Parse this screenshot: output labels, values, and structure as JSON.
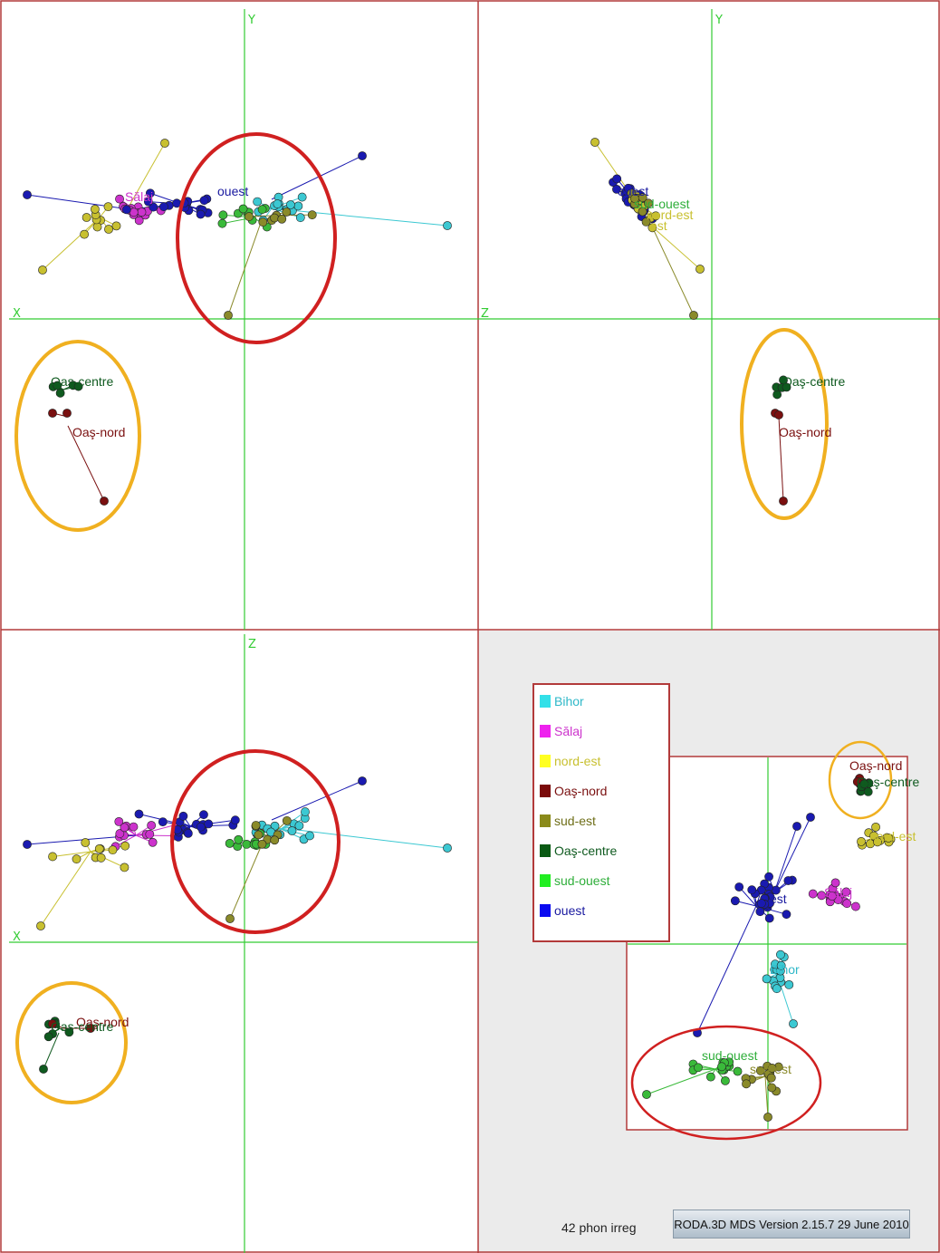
{
  "chart_data": [
    {
      "type": "scatter",
      "panel": "x-y",
      "axes": {
        "horizontal": "X",
        "vertical": "Y"
      },
      "labels": [
        {
          "text": "Sălaj",
          "color": "#cc33cc"
        },
        {
          "text": "ouest",
          "color": "#1a1aa0"
        },
        {
          "text": "Oaş-centre",
          "color": "#0f5a1f"
        },
        {
          "text": "Oaş-nord",
          "color": "#7a1010"
        }
      ],
      "circles": [
        {
          "color": "#d02020"
        },
        {
          "color": "#f0b020"
        }
      ]
    },
    {
      "type": "scatter",
      "panel": "z-y",
      "axes": {
        "horizontal": "Z",
        "vertical": "Y"
      },
      "labels": [
        {
          "text": "ouest",
          "color": "#1a1aa0"
        },
        {
          "text": "sud-ouest",
          "color": "#2fae3a"
        },
        {
          "text": "nord-est",
          "color": "#c8c030"
        },
        {
          "text": "est",
          "color": "#c8c030"
        },
        {
          "text": "Oaş-centre",
          "color": "#0f5a1f"
        },
        {
          "text": "Oaş-nord",
          "color": "#7a1010"
        }
      ],
      "circles": [
        {
          "color": "#f0b020"
        }
      ]
    },
    {
      "type": "scatter",
      "panel": "x-z",
      "axes": {
        "horizontal": "X",
        "vertical": "Z"
      },
      "labels": [
        {
          "text": "Oaş-nord",
          "color": "#7a1010"
        },
        {
          "text": "Oaş-centre",
          "color": "#0f5a1f"
        }
      ],
      "circles": [
        {
          "color": "#d02020"
        },
        {
          "color": "#f0b020"
        }
      ]
    },
    {
      "type": "scatter",
      "panel": "inset",
      "labels": [
        {
          "text": "Oaş-nord",
          "color": "#7a1010"
        },
        {
          "text": "Oaş-centre",
          "color": "#0f5a1f"
        },
        {
          "text": "nord-est",
          "color": "#c8c030"
        },
        {
          "text": "est",
          "color": "#1a1aa0"
        },
        {
          "text": "Sălaj",
          "color": "#cc33cc"
        },
        {
          "text": "Bihor",
          "color": "#2fb8c8"
        },
        {
          "text": "sud-ouest",
          "color": "#2fae3a"
        },
        {
          "text": "sud-est",
          "color": "#8a8a2a"
        }
      ],
      "circles": [
        {
          "color": "#f0b020"
        },
        {
          "color": "#d02020"
        }
      ]
    }
  ],
  "legend": {
    "items": [
      {
        "label": "Bihor",
        "color": "#33e0e8",
        "text_color": "#2fb8c8"
      },
      {
        "label": "Sălaj",
        "color": "#ee22ee",
        "text_color": "#cc33cc"
      },
      {
        "label": "nord-est",
        "color": "#ffff22",
        "text_color": "#c8c030"
      },
      {
        "label": "Oaş-nord",
        "color": "#7a0a0a",
        "text_color": "#7a1010"
      },
      {
        "label": "sud-est",
        "color": "#8a8a1a",
        "text_color": "#6e6e18"
      },
      {
        "label": "Oaş-centre",
        "color": "#0a5a14",
        "text_color": "#0f5a1f"
      },
      {
        "label": "sud-ouest",
        "color": "#22ee22",
        "text_color": "#2fae3a"
      },
      {
        "label": "ouest",
        "color": "#0a0af0",
        "text_color": "#1a1aa0"
      }
    ]
  },
  "footer": {
    "caption": "42 phon irreg",
    "version": "RODA.3D MDS Version 2.15.7 29 June 2010"
  },
  "colors": {
    "axis": "#33cc33",
    "frame": "#b23a3a",
    "panel_bg": "#ebebeb",
    "Bihor": "#3cc8d2",
    "Salaj": "#cc33cc",
    "nord-est": "#c8c030",
    "Oas-nord": "#7a1010",
    "sud-est": "#8a8a2a",
    "Oas-centre": "#0f5a1f",
    "sud-ouest": "#3aba3a",
    "ouest": "#1a1ab0"
  }
}
